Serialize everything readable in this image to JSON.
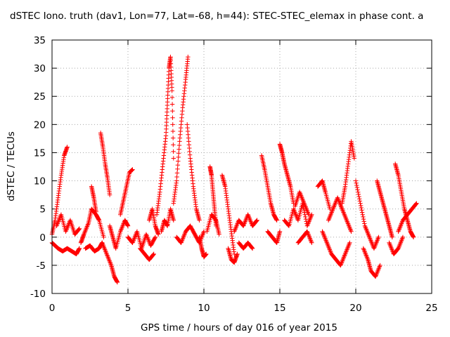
{
  "chart_data": {
    "type": "scatter",
    "title": "dSTEC Iono. truth (dav1, Lon=77, Lat=-68, h=44): STEC-STEC_elemax in phase cont. a",
    "xlabel": "GPS time / hours of day 016 of year 2015",
    "ylabel": "dSTEC  / TECUs",
    "xlim": [
      0,
      25
    ],
    "ylim": [
      -10,
      35
    ],
    "x_ticks": [
      0,
      5,
      10,
      15,
      20,
      25
    ],
    "y_ticks": [
      -10,
      -5,
      0,
      5,
      10,
      15,
      20,
      25,
      30,
      35
    ],
    "x_tick_labels": [
      "0",
      "5",
      "10",
      "15",
      "20",
      "25"
    ],
    "y_tick_labels": [
      "-10",
      "-5",
      "0",
      "5",
      "10",
      "15",
      "20",
      "25",
      "30",
      "35"
    ],
    "grid": true,
    "marker": "+",
    "color": "#ff0000",
    "series": [
      {
        "x": [
          0.0,
          0.2,
          0.4,
          0.6,
          0.8,
          1.0
        ],
        "y": [
          0.5,
          3.0,
          7.0,
          11.0,
          14.5,
          16.0
        ]
      },
      {
        "x": [
          0.0,
          0.2,
          0.4,
          0.7,
          1.0,
          1.3,
          1.6,
          1.8
        ],
        "y": [
          -1.0,
          -1.5,
          -2.0,
          -2.5,
          -2.0,
          -2.5,
          -3.0,
          -2.0
        ]
      },
      {
        "x": [
          0.3,
          0.6,
          0.9,
          1.2,
          1.5,
          1.8
        ],
        "y": [
          2.0,
          4.0,
          1.0,
          3.0,
          0.5,
          1.5
        ]
      },
      {
        "x": [
          1.9,
          2.1,
          2.4,
          2.6,
          2.9,
          3.1,
          3.4
        ],
        "y": [
          -1.0,
          0.5,
          2.5,
          5.0,
          4.0,
          3.0,
          0.0
        ]
      },
      {
        "x": [
          2.6,
          2.75,
          2.9
        ],
        "y": [
          9.0,
          7.0,
          4.5
        ]
      },
      {
        "x": [
          2.2,
          2.5,
          2.8,
          3.1,
          3.3
        ],
        "y": [
          -2.0,
          -1.5,
          -2.5,
          -2.0,
          -1.0
        ]
      },
      {
        "x": [
          3.2,
          3.35,
          3.5,
          3.65,
          3.8
        ],
        "y": [
          18.5,
          16.0,
          13.0,
          10.5,
          7.5
        ]
      },
      {
        "x": [
          3.3,
          3.6,
          3.9,
          4.1,
          4.3
        ],
        "y": [
          -1.0,
          -3.0,
          -5.0,
          -7.0,
          -8.0
        ]
      },
      {
        "x": [
          3.8,
          4.0,
          4.2,
          4.5,
          4.8,
          5.0
        ],
        "y": [
          2.0,
          0.0,
          -2.0,
          1.0,
          3.0,
          2.0
        ]
      },
      {
        "x": [
          4.5,
          4.7,
          4.9,
          5.1,
          5.3
        ],
        "y": [
          4.0,
          6.5,
          9.0,
          11.5,
          12.0
        ]
      },
      {
        "x": [
          5.0,
          5.3,
          5.6,
          5.9,
          6.2,
          6.5,
          6.8
        ],
        "y": [
          0.0,
          -1.0,
          1.0,
          -2.0,
          0.5,
          -1.5,
          0.0
        ]
      },
      {
        "x": [
          5.8,
          6.1,
          6.4,
          6.7
        ],
        "y": [
          -2.0,
          -3.0,
          -4.0,
          -3.0
        ]
      },
      {
        "x": [
          6.4,
          6.6,
          6.8,
          7.0
        ],
        "y": [
          3.0,
          5.0,
          2.0,
          0.5
        ]
      },
      {
        "x": [
          6.9,
          7.1,
          7.3,
          7.5,
          7.6,
          7.7,
          7.8,
          7.9,
          8.0
        ],
        "y": [
          4.0,
          8.0,
          13.0,
          18.0,
          24.0,
          30.0,
          32.0,
          26.0,
          14.0
        ]
      },
      {
        "x": [
          7.2,
          7.4,
          7.6,
          7.8,
          8.0
        ],
        "y": [
          1.0,
          3.0,
          2.0,
          5.0,
          3.0
        ]
      },
      {
        "x": [
          8.0,
          8.2,
          8.4,
          8.6,
          8.8,
          8.95
        ],
        "y": [
          6.0,
          10.0,
          17.0,
          23.0,
          28.0,
          32.0
        ]
      },
      {
        "x": [
          8.2,
          8.5,
          8.8,
          9.1,
          9.4,
          9.7,
          10.0
        ],
        "y": [
          0.0,
          -1.0,
          1.0,
          2.0,
          0.5,
          -1.0,
          1.0
        ]
      },
      {
        "x": [
          8.9,
          9.1,
          9.3,
          9.5,
          9.7
        ],
        "y": [
          20.0,
          14.0,
          9.0,
          5.0,
          3.0
        ]
      },
      {
        "x": [
          9.7,
          9.85,
          10.0,
          10.15
        ],
        "y": [
          0.0,
          -2.0,
          -3.5,
          -3.0
        ]
      },
      {
        "x": [
          10.2,
          10.5,
          10.8,
          11.0
        ],
        "y": [
          1.0,
          4.0,
          3.0,
          0.5
        ]
      },
      {
        "x": [
          10.4,
          10.5,
          10.6,
          10.7,
          10.8
        ],
        "y": [
          12.5,
          11.0,
          8.0,
          5.0,
          2.0
        ]
      },
      {
        "x": [
          11.2,
          11.4,
          11.6,
          11.8,
          12.0
        ],
        "y": [
          11.0,
          9.0,
          5.0,
          1.0,
          -3.0
        ]
      },
      {
        "x": [
          11.6,
          11.8,
          12.0,
          12.2
        ],
        "y": [
          -2.0,
          -4.0,
          -4.5,
          -3.0
        ]
      },
      {
        "x": [
          12.0,
          12.3,
          12.6,
          12.9,
          13.2,
          13.5
        ],
        "y": [
          1.0,
          3.0,
          2.0,
          4.0,
          2.0,
          3.0
        ]
      },
      {
        "x": [
          12.3,
          12.6,
          12.9,
          13.2
        ],
        "y": [
          -1.0,
          -2.0,
          -1.0,
          -2.0
        ]
      },
      {
        "x": [
          13.8,
          14.0,
          14.2,
          14.4,
          14.6,
          14.8
        ],
        "y": [
          14.5,
          12.0,
          9.0,
          6.0,
          4.0,
          3.0
        ]
      },
      {
        "x": [
          14.2,
          14.5,
          14.8,
          15.0
        ],
        "y": [
          1.0,
          0.0,
          -1.0,
          1.0
        ]
      },
      {
        "x": [
          15.0,
          15.15,
          15.3,
          15.5,
          15.7,
          15.9
        ],
        "y": [
          16.5,
          15.0,
          13.0,
          11.0,
          9.0,
          6.0
        ]
      },
      {
        "x": [
          15.3,
          15.6,
          15.9,
          16.2,
          16.5,
          16.8,
          17.1
        ],
        "y": [
          3.0,
          2.0,
          5.0,
          3.0,
          6.0,
          2.0,
          4.0
        ]
      },
      {
        "x": [
          16.2,
          16.5,
          16.8,
          17.1
        ],
        "y": [
          -1.0,
          0.0,
          1.0,
          -1.0
        ]
      },
      {
        "x": [
          16.0,
          16.3,
          16.6,
          16.9
        ],
        "y": [
          5.5,
          8.0,
          6.0,
          4.0
        ]
      },
      {
        "x": [
          17.5,
          17.8,
          18.0,
          18.3
        ],
        "y": [
          9.0,
          10.0,
          8.0,
          5.0
        ]
      },
      {
        "x": [
          17.8,
          18.1,
          18.4,
          18.7,
          19.0,
          19.3,
          19.6
        ],
        "y": [
          1.0,
          -1.0,
          -3.0,
          -4.0,
          -5.0,
          -3.0,
          -1.0
        ]
      },
      {
        "x": [
          18.2,
          18.5,
          18.8,
          19.1,
          19.4,
          19.7
        ],
        "y": [
          3.0,
          5.0,
          7.0,
          5.0,
          3.0,
          1.0
        ]
      },
      {
        "x": [
          19.1,
          19.3,
          19.5,
          19.7,
          19.9
        ],
        "y": [
          6.0,
          9.0,
          13.0,
          17.0,
          14.0
        ]
      },
      {
        "x": [
          20.0,
          20.3,
          20.6,
          20.9,
          21.2,
          21.5
        ],
        "y": [
          10.0,
          6.0,
          2.0,
          0.0,
          -2.0,
          0.0
        ]
      },
      {
        "x": [
          20.5,
          20.8,
          21.0,
          21.3,
          21.6
        ],
        "y": [
          -2.0,
          -4.0,
          -6.0,
          -7.0,
          -5.0
        ]
      },
      {
        "x": [
          21.4,
          21.6,
          21.8,
          22.0,
          22.2,
          22.4
        ],
        "y": [
          10.0,
          8.0,
          6.0,
          4.0,
          2.0,
          0.0
        ]
      },
      {
        "x": [
          22.6,
          22.8,
          23.0,
          23.2,
          23.4,
          23.6,
          23.8
        ],
        "y": [
          13.0,
          11.0,
          8.0,
          5.0,
          3.0,
          1.0,
          0.0
        ]
      },
      {
        "x": [
          22.8,
          23.1,
          23.4,
          23.7,
          24.0
        ],
        "y": [
          1.0,
          3.0,
          4.0,
          5.0,
          6.0
        ]
      },
      {
        "x": [
          22.2,
          22.5,
          22.8,
          23.1
        ],
        "y": [
          -1.0,
          -3.0,
          -2.0,
          0.0
        ]
      }
    ]
  }
}
